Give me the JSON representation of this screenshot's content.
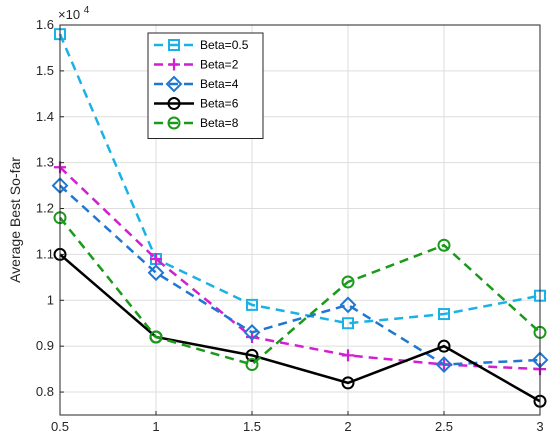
{
  "chart_data": {
    "type": "line",
    "title": "",
    "xlabel": "",
    "ylabel": "Average Best So-far",
    "y_multiplier_label": "×10",
    "y_multiplier_exponent": "4",
    "x": [
      0.5,
      1,
      1.5,
      2,
      2.5,
      3
    ],
    "xlim": [
      0.5,
      3
    ],
    "ylim": [
      7500,
      16000
    ],
    "xticks": [
      0.5,
      1,
      1.5,
      2,
      2.5,
      3
    ],
    "xtick_labels": [
      "0.5",
      "1",
      "1.5",
      "2",
      "2.5",
      "3"
    ],
    "yticks": [
      8000,
      9000,
      10000,
      11000,
      12000,
      13000,
      14000,
      15000,
      16000
    ],
    "ytick_labels": [
      "0.8",
      "0.9",
      "1",
      "1.1",
      "1.2",
      "1.3",
      "1.4",
      "1.5",
      "1.6"
    ],
    "grid": true,
    "legend_position": "top-left",
    "series": [
      {
        "name": "Beta=0.5",
        "color": "#1ab2e6",
        "dash": "dashed",
        "marker": "square",
        "values": [
          15800,
          10900,
          9900,
          9500,
          9700,
          10100
        ]
      },
      {
        "name": "Beta=2",
        "color": "#d11fd1",
        "dash": "dashed",
        "marker": "plus",
        "values": [
          12900,
          10900,
          9200,
          8800,
          8600,
          8500
        ]
      },
      {
        "name": "Beta=4",
        "color": "#1f77d1",
        "dash": "dashed",
        "marker": "diamond",
        "values": [
          12500,
          10600,
          9300,
          9900,
          8600,
          8700
        ]
      },
      {
        "name": "Beta=6",
        "color": "#000000",
        "dash": "solid",
        "marker": "circle",
        "values": [
          11000,
          9200,
          8800,
          8200,
          9000,
          7800
        ]
      },
      {
        "name": "Beta=8",
        "color": "#1a9a1a",
        "dash": "dashed",
        "marker": "circle",
        "values": [
          11800,
          9200,
          8600,
          10400,
          11200,
          9300
        ]
      }
    ]
  }
}
